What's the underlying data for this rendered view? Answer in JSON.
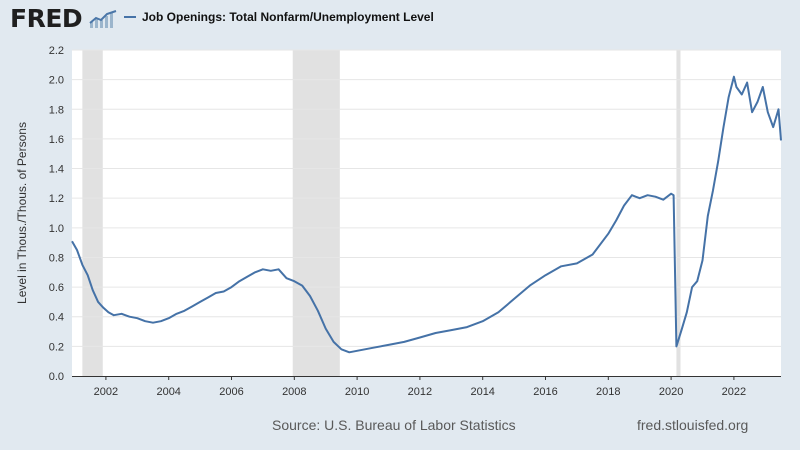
{
  "header": {
    "logo_text": "FRED",
    "logo_icon": "line-chart-icon"
  },
  "legend": {
    "label": "Job Openings: Total Nonfarm/Unemployment Level",
    "color": "#4572a7"
  },
  "footer": {
    "source": "Source: U.S. Bureau of Labor Statistics",
    "site": "fred.stlouisfed.org"
  },
  "chart_data": {
    "type": "line",
    "title": "",
    "xlabel": "",
    "ylabel": "Level in Thous./Thous. of Persons",
    "xlim": [
      2000.92,
      2023.5
    ],
    "ylim": [
      0,
      2.2
    ],
    "yticks": [
      0.0,
      0.2,
      0.4,
      0.6,
      0.8,
      1.0,
      1.2,
      1.4,
      1.6,
      1.8,
      2.0,
      2.2
    ],
    "ytick_labels": [
      "0.0",
      "0.2",
      "0.4",
      "0.6",
      "0.8",
      "1.0",
      "1.2",
      "1.4",
      "1.6",
      "1.8",
      "2.0",
      "2.2"
    ],
    "xticks": [
      2002,
      2004,
      2006,
      2008,
      2010,
      2012,
      2014,
      2016,
      2018,
      2020,
      2022
    ],
    "xtick_labels": [
      "2002",
      "2004",
      "2006",
      "2008",
      "2010",
      "2012",
      "2014",
      "2016",
      "2018",
      "2020",
      "2022"
    ],
    "grid": true,
    "recessions": [
      [
        2001.25,
        2001.9
      ],
      [
        2007.95,
        2009.45
      ],
      [
        2020.17,
        2020.3
      ]
    ],
    "series": [
      {
        "name": "Job Openings: Total Nonfarm/Unemployment Level",
        "color": "#4572a7",
        "x": [
          2000.92,
          2001.08,
          2001.25,
          2001.42,
          2001.58,
          2001.75,
          2001.92,
          2002.08,
          2002.25,
          2002.5,
          2002.75,
          2003.0,
          2003.25,
          2003.5,
          2003.75,
          2004.0,
          2004.25,
          2004.5,
          2004.75,
          2005.0,
          2005.25,
          2005.5,
          2005.75,
          2006.0,
          2006.25,
          2006.5,
          2006.75,
          2007.0,
          2007.25,
          2007.5,
          2007.75,
          2008.0,
          2008.25,
          2008.5,
          2008.75,
          2009.0,
          2009.25,
          2009.5,
          2009.75,
          2010.0,
          2010.5,
          2011.0,
          2011.5,
          2012.0,
          2012.5,
          2013.0,
          2013.5,
          2014.0,
          2014.5,
          2015.0,
          2015.5,
          2016.0,
          2016.5,
          2017.0,
          2017.5,
          2018.0,
          2018.25,
          2018.5,
          2018.75,
          2019.0,
          2019.25,
          2019.5,
          2019.75,
          2020.0,
          2020.08,
          2020.17,
          2020.33,
          2020.5,
          2020.67,
          2020.83,
          2021.0,
          2021.17,
          2021.33,
          2021.5,
          2021.67,
          2021.83,
          2022.0,
          2022.08,
          2022.25,
          2022.42,
          2022.58,
          2022.75,
          2022.92,
          2023.08,
          2023.25,
          2023.42,
          2023.5
        ],
        "y": [
          0.91,
          0.85,
          0.75,
          0.68,
          0.58,
          0.5,
          0.46,
          0.43,
          0.41,
          0.42,
          0.4,
          0.39,
          0.37,
          0.36,
          0.37,
          0.39,
          0.42,
          0.44,
          0.47,
          0.5,
          0.53,
          0.56,
          0.57,
          0.6,
          0.64,
          0.67,
          0.7,
          0.72,
          0.71,
          0.72,
          0.66,
          0.64,
          0.61,
          0.54,
          0.44,
          0.32,
          0.23,
          0.18,
          0.16,
          0.17,
          0.19,
          0.21,
          0.23,
          0.26,
          0.29,
          0.31,
          0.33,
          0.37,
          0.43,
          0.52,
          0.61,
          0.68,
          0.74,
          0.76,
          0.82,
          0.96,
          1.05,
          1.15,
          1.22,
          1.2,
          1.22,
          1.21,
          1.19,
          1.23,
          1.22,
          0.2,
          0.31,
          0.43,
          0.6,
          0.64,
          0.78,
          1.08,
          1.25,
          1.45,
          1.68,
          1.88,
          2.02,
          1.95,
          1.9,
          1.98,
          1.78,
          1.85,
          1.95,
          1.78,
          1.68,
          1.8,
          1.59
        ]
      }
    ]
  }
}
